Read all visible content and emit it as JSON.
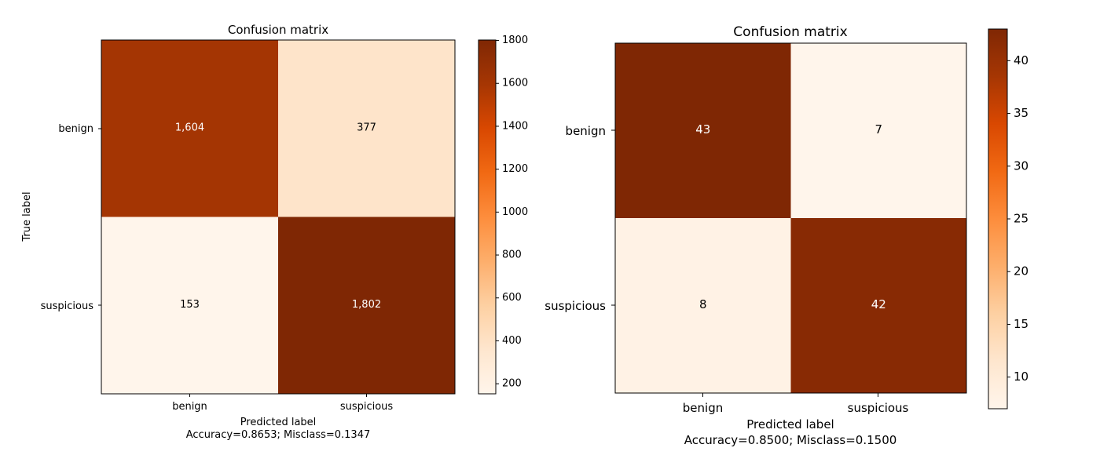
{
  "chart_data": [
    {
      "type": "heatmap",
      "title": "Confusion matrix",
      "xlabel": "Predicted label",
      "ylabel": "True label",
      "subtitle": "Accuracy=0.8653; Misclass=0.1347",
      "x_categories": [
        "benign",
        "suspicious"
      ],
      "y_categories": [
        "benign",
        "suspicious"
      ],
      "values": [
        [
          1604,
          377
        ],
        [
          153,
          1802
        ]
      ],
      "cell_labels": [
        [
          "1,604",
          "377"
        ],
        [
          "153",
          "1,802"
        ]
      ],
      "colorbar": {
        "min": 153,
        "max": 1802,
        "ticks": [
          200,
          400,
          600,
          800,
          1000,
          1200,
          1400,
          1600,
          1800
        ]
      },
      "colormap": "Oranges"
    },
    {
      "type": "heatmap",
      "title": "Confusion matrix",
      "xlabel": "Predicted label",
      "ylabel": "",
      "subtitle": "Accuracy=0.8500; Misclass=0.1500",
      "x_categories": [
        "benign",
        "suspicious"
      ],
      "y_categories": [
        "benign",
        "suspicious"
      ],
      "values": [
        [
          43,
          7
        ],
        [
          8,
          42
        ]
      ],
      "cell_labels": [
        [
          "43",
          "7"
        ],
        [
          "8",
          "42"
        ]
      ],
      "colorbar": {
        "min": 7,
        "max": 43,
        "ticks": [
          10,
          15,
          20,
          25,
          30,
          35,
          40
        ]
      },
      "colormap": "Oranges"
    }
  ],
  "colors": {
    "text_light": "#ffffff",
    "text_dark": "#000000",
    "axis": "#000000"
  }
}
